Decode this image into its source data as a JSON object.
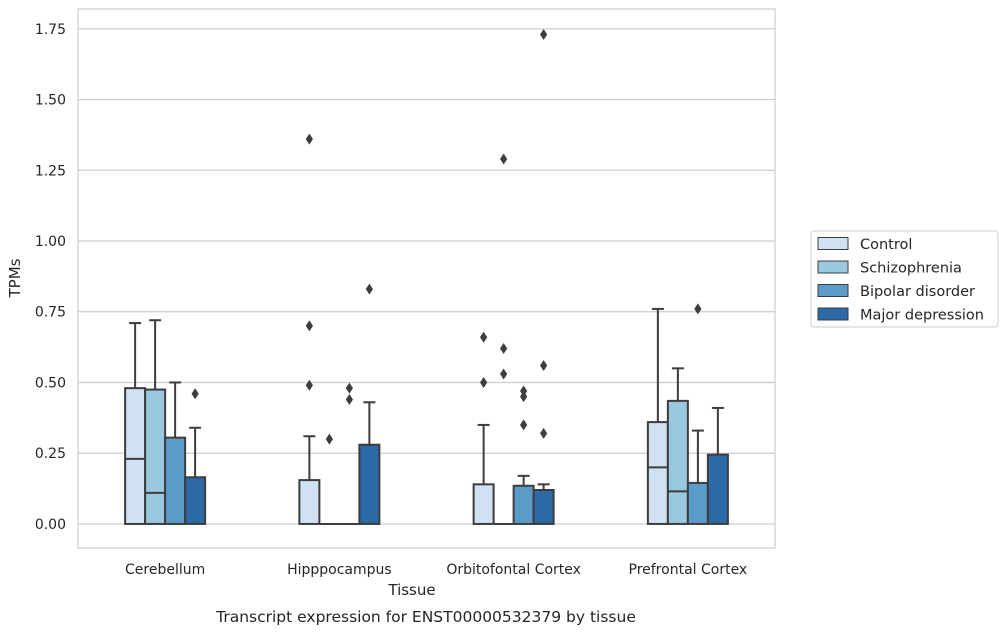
{
  "chart_data": {
    "type": "box",
    "caption": "Transcript expression for ENST00000532379 by tissue",
    "xlabel": "Tissue",
    "ylabel": "TPMs",
    "ylim": [
      -0.085,
      1.82
    ],
    "yticks": [
      0.0,
      0.25,
      0.5,
      0.75,
      1.0,
      1.25,
      1.5,
      1.75
    ],
    "ytick_labels": [
      "0.00",
      "0.25",
      "0.50",
      "0.75",
      "1.00",
      "1.25",
      "1.50",
      "1.75"
    ],
    "grid": true,
    "legend_position": "center-right outside",
    "categories": [
      "Cerebellum",
      "Hipppocampus",
      "Orbitofontal Cortex",
      "Prefrontal Cortex"
    ],
    "series": [
      {
        "name": "Control",
        "color": "#d0e1f2",
        "boxes": [
          {
            "q1": 0.0,
            "median": 0.23,
            "q3": 0.48,
            "whisker_low": 0.0,
            "whisker_high": 0.71,
            "outliers": []
          },
          {
            "q1": 0.0,
            "median": 0.0,
            "q3": 0.155,
            "whisker_low": 0.0,
            "whisker_high": 0.31,
            "outliers": [
              0.49,
              0.7,
              1.36
            ]
          },
          {
            "q1": 0.0,
            "median": 0.0,
            "q3": 0.14,
            "whisker_low": 0.0,
            "whisker_high": 0.35,
            "outliers": [
              0.5,
              0.66
            ]
          },
          {
            "q1": 0.0,
            "median": 0.2,
            "q3": 0.36,
            "whisker_low": 0.0,
            "whisker_high": 0.76,
            "outliers": []
          }
        ]
      },
      {
        "name": "Schizophrenia",
        "color": "#9ac8e0",
        "boxes": [
          {
            "q1": 0.0,
            "median": 0.11,
            "q3": 0.475,
            "whisker_low": 0.0,
            "whisker_high": 0.72,
            "outliers": []
          },
          {
            "q1": 0.0,
            "median": 0.0,
            "q3": 0.0,
            "whisker_low": 0.0,
            "whisker_high": 0.0,
            "outliers": [
              0.3
            ]
          },
          {
            "q1": 0.0,
            "median": 0.0,
            "q3": 0.0,
            "whisker_low": 0.0,
            "whisker_high": 0.0,
            "outliers": [
              0.53,
              0.62,
              1.29
            ]
          },
          {
            "q1": 0.0,
            "median": 0.115,
            "q3": 0.435,
            "whisker_low": 0.0,
            "whisker_high": 0.55,
            "outliers": []
          }
        ]
      },
      {
        "name": "Bipolar disorder",
        "color": "#5a9bc9",
        "boxes": [
          {
            "q1": 0.0,
            "median": 0.0,
            "q3": 0.305,
            "whisker_low": 0.0,
            "whisker_high": 0.5,
            "outliers": []
          },
          {
            "q1": 0.0,
            "median": 0.0,
            "q3": 0.0,
            "whisker_low": 0.0,
            "whisker_high": 0.0,
            "outliers": [
              0.44,
              0.48
            ]
          },
          {
            "q1": 0.0,
            "median": 0.0,
            "q3": 0.135,
            "whisker_low": 0.0,
            "whisker_high": 0.17,
            "outliers": [
              0.35,
              0.45,
              0.47
            ]
          },
          {
            "q1": 0.0,
            "median": 0.0,
            "q3": 0.145,
            "whisker_low": 0.0,
            "whisker_high": 0.33,
            "outliers": [
              0.76
            ]
          }
        ]
      },
      {
        "name": "Major depression",
        "color": "#2b6aa6",
        "boxes": [
          {
            "q1": 0.0,
            "median": 0.0,
            "q3": 0.165,
            "whisker_low": 0.0,
            "whisker_high": 0.34,
            "outliers": [
              0.46
            ]
          },
          {
            "q1": 0.0,
            "median": 0.0,
            "q3": 0.28,
            "whisker_low": 0.0,
            "whisker_high": 0.43,
            "outliers": [
              0.83
            ]
          },
          {
            "q1": 0.0,
            "median": 0.0,
            "q3": 0.12,
            "whisker_low": 0.0,
            "whisker_high": 0.14,
            "outliers": [
              0.32,
              0.56,
              1.73
            ]
          },
          {
            "q1": 0.0,
            "median": 0.0,
            "q3": 0.245,
            "whisker_low": 0.0,
            "whisker_high": 0.41,
            "outliers": []
          }
        ]
      }
    ]
  }
}
